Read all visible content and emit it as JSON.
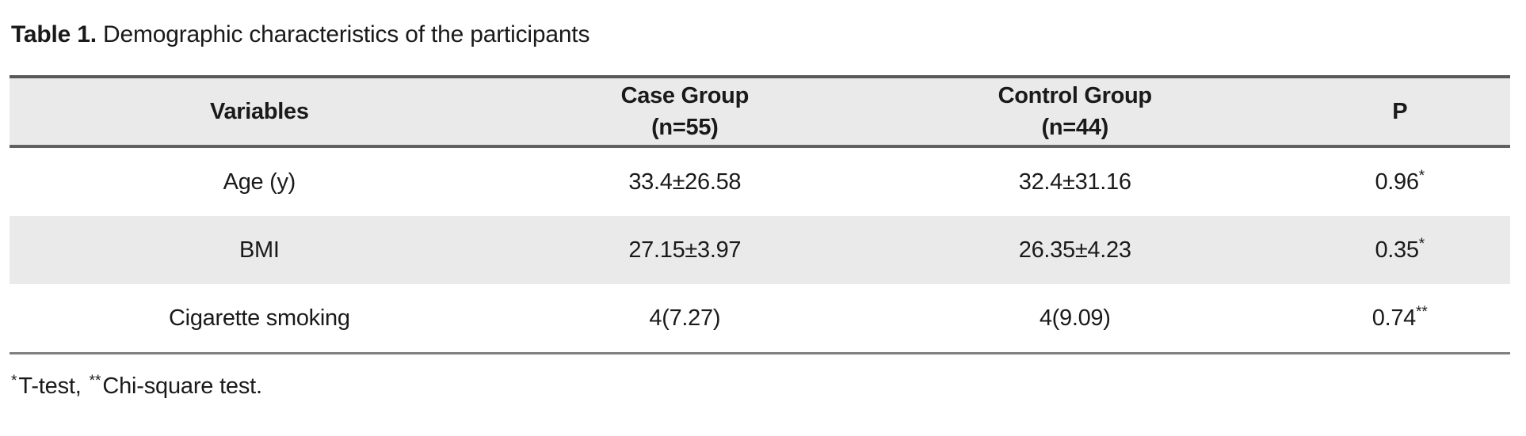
{
  "title": {
    "label": "Table 1.",
    "text": " Demographic characteristics of the participants"
  },
  "colors": {
    "header_bg": "#eaeaea",
    "stripe_bg": "#eaeaea",
    "border_top": "#595959",
    "border_header_bottom": "#616161",
    "border_table_bottom": "#808080"
  },
  "table": {
    "columns": [
      {
        "line1": "Variables",
        "line2": ""
      },
      {
        "line1": "Case Group",
        "line2": "(n=55)"
      },
      {
        "line1": "Control Group",
        "line2": "(n=44)"
      },
      {
        "line1": "P",
        "line2": ""
      }
    ],
    "rows": [
      {
        "variable": "Age (y)",
        "case": "33.4±26.58",
        "control": "32.4±31.16",
        "p": "0.96",
        "p_marker": "*"
      },
      {
        "variable": "BMI",
        "case": "27.15±3.97",
        "control": "26.35±4.23",
        "p": "0.35",
        "p_marker": "*"
      },
      {
        "variable": "Cigarette smoking",
        "case": "4(7.27)",
        "control": "4(9.09)",
        "p": "0.74",
        "p_marker": "**"
      }
    ]
  },
  "footnote": {
    "marker1": "*",
    "label1": "T-test,",
    "marker2": "**",
    "label2": "Chi-square test."
  }
}
